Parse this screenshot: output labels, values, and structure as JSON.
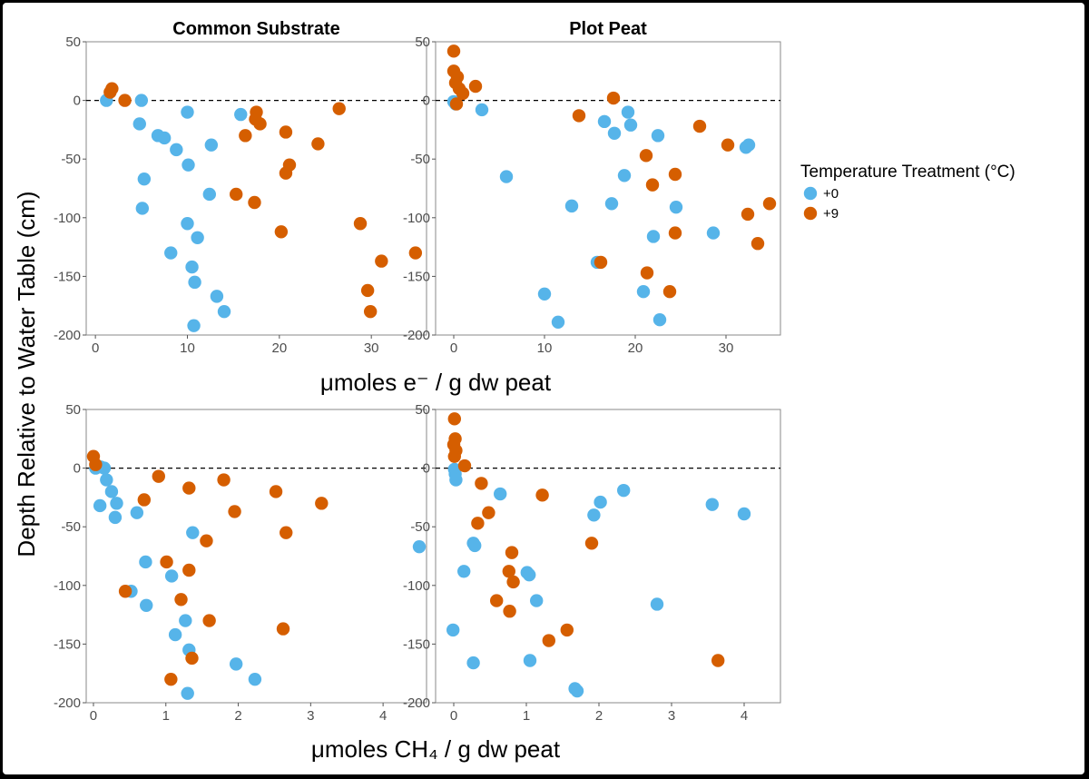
{
  "figure": {
    "y_axis_label": "Depth Relative to Water Table (cm)",
    "legend_title": "Temperature Treatment (°C)",
    "legend_items": [
      {
        "label": "+0",
        "color": "#56B4E9"
      },
      {
        "label": "+9",
        "color": "#D55E00"
      }
    ]
  },
  "chart_data": [
    {
      "type": "scatter",
      "panel": "top-left",
      "title": "Common Substrate",
      "xlabel": "μmoles e⁻ / g dw peat",
      "ylabel": "Depth Relative to Water Table (cm)",
      "xlim": [
        -1,
        36
      ],
      "ylim": [
        -200,
        50
      ],
      "xticks": [
        0,
        10,
        20,
        30
      ],
      "yticks": [
        50,
        0,
        -50,
        -100,
        -150,
        -200
      ],
      "reference_line": {
        "y": 0,
        "style": "dashed"
      },
      "grid": false,
      "legend": "right",
      "series": [
        {
          "name": "+0",
          "color": "#56B4E9",
          "points": [
            [
              1.2,
              0
            ],
            [
              5,
              0
            ],
            [
              10,
              -10
            ],
            [
              15.8,
              -12
            ],
            [
              4.8,
              -20
            ],
            [
              6.8,
              -30
            ],
            [
              7.5,
              -32
            ],
            [
              8.8,
              -42
            ],
            [
              12.6,
              -38
            ],
            [
              10.1,
              -55
            ],
            [
              5.3,
              -67
            ],
            [
              12.4,
              -80
            ],
            [
              5.1,
              -92
            ],
            [
              10,
              -105
            ],
            [
              11.1,
              -117
            ],
            [
              8.2,
              -130
            ],
            [
              10.5,
              -142
            ],
            [
              10.8,
              -155
            ],
            [
              13.2,
              -167
            ],
            [
              14,
              -180
            ],
            [
              10.7,
              -192
            ]
          ]
        },
        {
          "name": "+9",
          "color": "#D55E00",
          "points": [
            [
              1.8,
              10
            ],
            [
              1.6,
              7
            ],
            [
              3.2,
              0
            ],
            [
              17.5,
              -10
            ],
            [
              17.4,
              -16
            ],
            [
              17.9,
              -20
            ],
            [
              16.3,
              -30
            ],
            [
              20.7,
              -27
            ],
            [
              24.2,
              -37
            ],
            [
              26.5,
              -7
            ],
            [
              21.1,
              -55
            ],
            [
              20.7,
              -62
            ],
            [
              15.3,
              -80
            ],
            [
              17.3,
              -87
            ],
            [
              20.2,
              -112
            ],
            [
              28.8,
              -105
            ],
            [
              31.1,
              -137
            ],
            [
              34.8,
              -130
            ],
            [
              29.6,
              -162
            ],
            [
              29.9,
              -180
            ]
          ]
        }
      ]
    },
    {
      "type": "scatter",
      "panel": "top-right",
      "title": "Plot Peat",
      "xlabel": "μmoles e⁻ / g dw peat",
      "ylabel": "",
      "xlim": [
        -2,
        36
      ],
      "ylim": [
        -200,
        50
      ],
      "xticks": [
        0,
        10,
        20,
        30
      ],
      "yticks": [
        50,
        0,
        -50,
        -100,
        -150,
        -200
      ],
      "reference_line": {
        "y": 0,
        "style": "dashed"
      },
      "grid": false,
      "legend": "right",
      "series": [
        {
          "name": "+0",
          "color": "#56B4E9",
          "points": [
            [
              0,
              -1
            ],
            [
              0.2,
              -3
            ],
            [
              3.1,
              -8
            ],
            [
              19.2,
              -10
            ],
            [
              16.6,
              -18
            ],
            [
              19.5,
              -21
            ],
            [
              17.7,
              -28
            ],
            [
              22.5,
              -30
            ],
            [
              32.5,
              -38
            ],
            [
              32.2,
              -40
            ],
            [
              18.8,
              -64
            ],
            [
              5.8,
              -65
            ],
            [
              13,
              -90
            ],
            [
              17.4,
              -88
            ],
            [
              24.5,
              -91
            ],
            [
              22,
              -116
            ],
            [
              28.6,
              -113
            ],
            [
              15.8,
              -138
            ],
            [
              10,
              -165
            ],
            [
              20.9,
              -163
            ],
            [
              11.5,
              -189
            ],
            [
              22.7,
              -187
            ]
          ]
        },
        {
          "name": "+9",
          "color": "#D55E00",
          "points": [
            [
              0,
              42
            ],
            [
              0,
              25
            ],
            [
              0.4,
              20
            ],
            [
              0.2,
              15
            ],
            [
              0.6,
              10
            ],
            [
              1,
              6
            ],
            [
              2.4,
              12
            ],
            [
              0.3,
              -3
            ],
            [
              17.6,
              2
            ],
            [
              13.8,
              -13
            ],
            [
              27.1,
              -22
            ],
            [
              30.2,
              -38
            ],
            [
              21.2,
              -47
            ],
            [
              24.4,
              -63
            ],
            [
              21.9,
              -72
            ],
            [
              34.8,
              -88
            ],
            [
              32.4,
              -97
            ],
            [
              33.5,
              -122
            ],
            [
              24.4,
              -113
            ],
            [
              16.2,
              -138
            ],
            [
              21.3,
              -147
            ],
            [
              23.8,
              -163
            ]
          ]
        }
      ]
    },
    {
      "type": "scatter",
      "panel": "bottom-left",
      "title": "",
      "xlabel": "μmoles CH₄ / g dw peat",
      "ylabel": "Depth Relative to Water Table (cm)",
      "xlim": [
        -0.1,
        4.6
      ],
      "ylim": [
        -200,
        50
      ],
      "xticks": [
        0,
        1,
        2,
        3,
        4
      ],
      "yticks": [
        50,
        0,
        -50,
        -100,
        -150,
        -200
      ],
      "reference_line": {
        "y": 0,
        "style": "dashed"
      },
      "grid": false,
      "legend": "right",
      "series": [
        {
          "name": "+0",
          "color": "#56B4E9",
          "points": [
            [
              0.03,
              0
            ],
            [
              0.1,
              1
            ],
            [
              0.15,
              0
            ],
            [
              0.18,
              -10
            ],
            [
              0.25,
              -20
            ],
            [
              0.32,
              -30
            ],
            [
              0.3,
              -42
            ],
            [
              0.09,
              -32
            ],
            [
              0.6,
              -38
            ],
            [
              1.37,
              -55
            ],
            [
              4.5,
              -67
            ],
            [
              0.72,
              -80
            ],
            [
              1.08,
              -92
            ],
            [
              0.52,
              -105
            ],
            [
              0.73,
              -117
            ],
            [
              1.27,
              -130
            ],
            [
              1.13,
              -142
            ],
            [
              1.32,
              -155
            ],
            [
              1.97,
              -167
            ],
            [
              2.23,
              -180
            ],
            [
              1.3,
              -192
            ]
          ]
        },
        {
          "name": "+9",
          "color": "#D55E00",
          "points": [
            [
              0,
              10
            ],
            [
              0.03,
              3
            ],
            [
              0.9,
              -7
            ],
            [
              1.8,
              -10
            ],
            [
              1.32,
              -17
            ],
            [
              2.52,
              -20
            ],
            [
              0.7,
              -27
            ],
            [
              3.15,
              -30
            ],
            [
              1.95,
              -37
            ],
            [
              2.66,
              -55
            ],
            [
              1.56,
              -62
            ],
            [
              1.01,
              -80
            ],
            [
              1.32,
              -87
            ],
            [
              0.44,
              -105
            ],
            [
              1.21,
              -112
            ],
            [
              1.6,
              -130
            ],
            [
              2.62,
              -137
            ],
            [
              1.36,
              -162
            ],
            [
              1.07,
              -180
            ]
          ]
        }
      ]
    },
    {
      "type": "scatter",
      "panel": "bottom-right",
      "title": "",
      "xlabel": "μmoles CH₄ / g dw peat",
      "ylabel": "",
      "xlim": [
        -0.25,
        4.5
      ],
      "ylim": [
        -200,
        50
      ],
      "xticks": [
        0,
        1,
        2,
        3,
        4
      ],
      "yticks": [
        50,
        0,
        -50,
        -100,
        -150,
        -200
      ],
      "reference_line": {
        "y": 0,
        "style": "dashed"
      },
      "grid": false,
      "legend": "right",
      "series": [
        {
          "name": "+0",
          "color": "#56B4E9",
          "points": [
            [
              0.01,
              -1
            ],
            [
              0.02,
              -5
            ],
            [
              0.03,
              -10
            ],
            [
              0.64,
              -22
            ],
            [
              2.34,
              -19
            ],
            [
              2.02,
              -29
            ],
            [
              1.93,
              -40
            ],
            [
              3.56,
              -31
            ],
            [
              4,
              -39
            ],
            [
              0.27,
              -64
            ],
            [
              0.29,
              -66
            ],
            [
              0.14,
              -88
            ],
            [
              1.01,
              -89
            ],
            [
              1.04,
              -91
            ],
            [
              1.14,
              -113
            ],
            [
              2.8,
              -116
            ],
            [
              -0.01,
              -138
            ],
            [
              0.27,
              -166
            ],
            [
              1.05,
              -164
            ],
            [
              1.67,
              -188
            ],
            [
              1.7,
              -190
            ]
          ]
        },
        {
          "name": "+9",
          "color": "#D55E00",
          "points": [
            [
              0.01,
              42
            ],
            [
              0.02,
              25
            ],
            [
              0,
              20
            ],
            [
              0.03,
              15
            ],
            [
              0.01,
              10
            ],
            [
              0.15,
              2
            ],
            [
              0.38,
              -13
            ],
            [
              1.22,
              -23
            ],
            [
              0.48,
              -38
            ],
            [
              0.33,
              -47
            ],
            [
              1.9,
              -64
            ],
            [
              0.8,
              -72
            ],
            [
              0.76,
              -88
            ],
            [
              0.82,
              -97
            ],
            [
              0.59,
              -113
            ],
            [
              0.77,
              -122
            ],
            [
              1.56,
              -138
            ],
            [
              1.31,
              -147
            ],
            [
              3.64,
              -164
            ]
          ]
        }
      ]
    }
  ]
}
